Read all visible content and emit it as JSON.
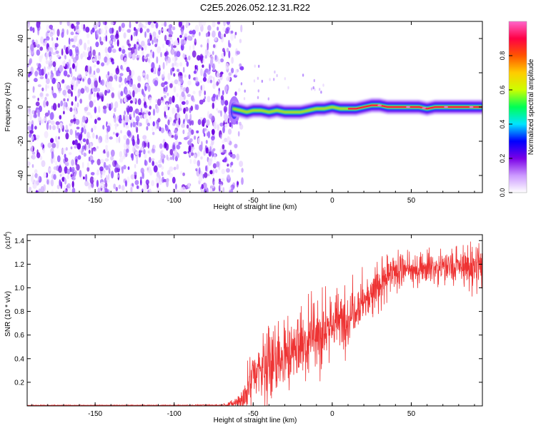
{
  "title": "C2E5.2026.052.12.31.R22",
  "chart_data": [
    {
      "type": "heatmap",
      "xlabel": "Height of straight line (km)",
      "ylabel": "Frequency (Hz)",
      "xlim": [
        -193,
        95
      ],
      "ylim": [
        -50,
        50
      ],
      "xticks": [
        -150,
        -100,
        -50,
        0,
        50
      ],
      "yticks": [
        -40,
        -20,
        0,
        20,
        40
      ],
      "noise_region_x": [
        -193,
        -63
      ],
      "signal_track": {
        "x": [
          -63,
          -58,
          -54,
          -50,
          -45,
          -40,
          -35,
          -30,
          -25,
          -20,
          -15,
          -10,
          -5,
          0,
          5,
          10,
          15,
          20,
          25,
          30,
          35,
          40,
          45,
          50,
          55,
          60,
          65,
          70,
          75,
          80,
          85,
          90,
          95
        ],
        "freq": [
          -1,
          -2,
          -3,
          -2,
          -2,
          -3,
          -2,
          -3,
          -3,
          -3,
          -2,
          -1,
          -1,
          0,
          -1,
          -1,
          -1,
          0,
          1,
          1,
          0,
          0,
          0,
          0,
          0,
          -1,
          0,
          0,
          0,
          0,
          0,
          0,
          0
        ]
      },
      "colorbar": {
        "label": "Normalized spectral amplitude",
        "range": [
          0,
          1
        ],
        "ticks": [
          "0.0",
          "0.2",
          "0.4",
          "0.6",
          "0.8"
        ],
        "colors": [
          "#ffffff",
          "#cc99ff",
          "#7a00e6",
          "#0000ff",
          "#00e5ff",
          "#00ff55",
          "#ccff00",
          "#ffcc00",
          "#ff5500",
          "#ff0044",
          "#ff66cc"
        ]
      }
    },
    {
      "type": "line",
      "xlabel": "Height of straight line (km)",
      "ylabel": "SNR (10 * v/v)",
      "y_exponent_label": "(x10",
      "y_exponent_power": "4",
      "y_exponent_close": ")",
      "xlim": [
        -193,
        95
      ],
      "ylim": [
        0,
        14500
      ],
      "xticks": [
        -150,
        -100,
        -50,
        0,
        50
      ],
      "yticks": [
        "0.2",
        "0.4",
        "0.6",
        "0.8",
        "1.0",
        "1.2",
        "1.4"
      ],
      "ytick_values": [
        2000,
        4000,
        6000,
        8000,
        10000,
        12000,
        14000
      ],
      "color": "#ee3333",
      "series": [
        {
          "name": "SNR",
          "x": [
            -193,
            -150,
            -100,
            -70,
            -62,
            -55,
            -50,
            -45,
            -40,
            -35,
            -30,
            -25,
            -20,
            -15,
            -10,
            -5,
            0,
            5,
            10,
            15,
            20,
            25,
            30,
            35,
            40,
            45,
            50,
            55,
            60,
            65,
            70,
            75,
            80,
            85,
            90,
            95
          ],
          "mean": [
            50,
            50,
            50,
            60,
            200,
            800,
            2800,
            3000,
            3400,
            3500,
            4000,
            4700,
            5200,
            5400,
            6000,
            6500,
            7000,
            7200,
            7500,
            8500,
            9000,
            9800,
            10200,
            10800,
            11300,
            11500,
            11400,
            11700,
            11800,
            11700,
            11800,
            11700,
            11800,
            11700,
            11600,
            11800
          ],
          "spread": [
            30,
            30,
            30,
            60,
            300,
            1500,
            1800,
            2200,
            2600,
            2300,
            2000,
            2300,
            2400,
            2500,
            2800,
            2200,
            2000,
            2000,
            2200,
            1800,
            1700,
            1500,
            1400,
            1300,
            1100,
            1100,
            1000,
            1000,
            1000,
            1000,
            1000,
            1100,
            1100,
            1200,
            1800,
            1600
          ]
        }
      ]
    }
  ]
}
